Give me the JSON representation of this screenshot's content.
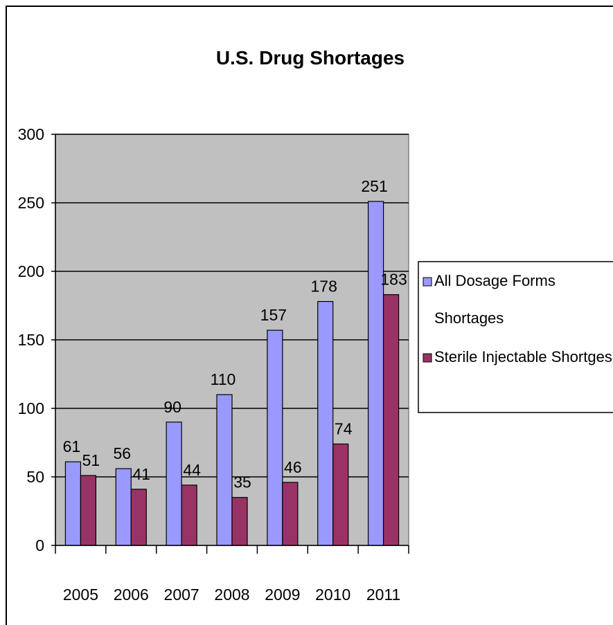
{
  "chart_data": {
    "type": "bar",
    "title": "U.S. Drug Shortages",
    "categories": [
      "2005",
      "2006",
      "2007",
      "2008",
      "2009",
      "2010",
      "2011"
    ],
    "series": [
      {
        "name": "All Dosage Forms Shortages",
        "legend_lines": [
          "All Dosage Forms",
          "Shortages"
        ],
        "values": [
          61,
          56,
          90,
          110,
          157,
          178,
          251
        ],
        "color": "#9999ff"
      },
      {
        "name": "Sterile Injectable Shortges",
        "legend_lines": [
          "Sterile Injectable Shortges"
        ],
        "values": [
          51,
          41,
          44,
          35,
          46,
          74,
          183
        ],
        "color": "#993366"
      }
    ],
    "ylim": [
      0,
      300
    ],
    "yticks": [
      "0",
      "50",
      "100",
      "150",
      "200",
      "250",
      "300"
    ],
    "ytick_values": [
      0,
      50,
      100,
      150,
      200,
      250,
      300
    ],
    "grid": true,
    "plot_background": "#c0c0c0",
    "legend_position": "right",
    "data_labels": true
  }
}
